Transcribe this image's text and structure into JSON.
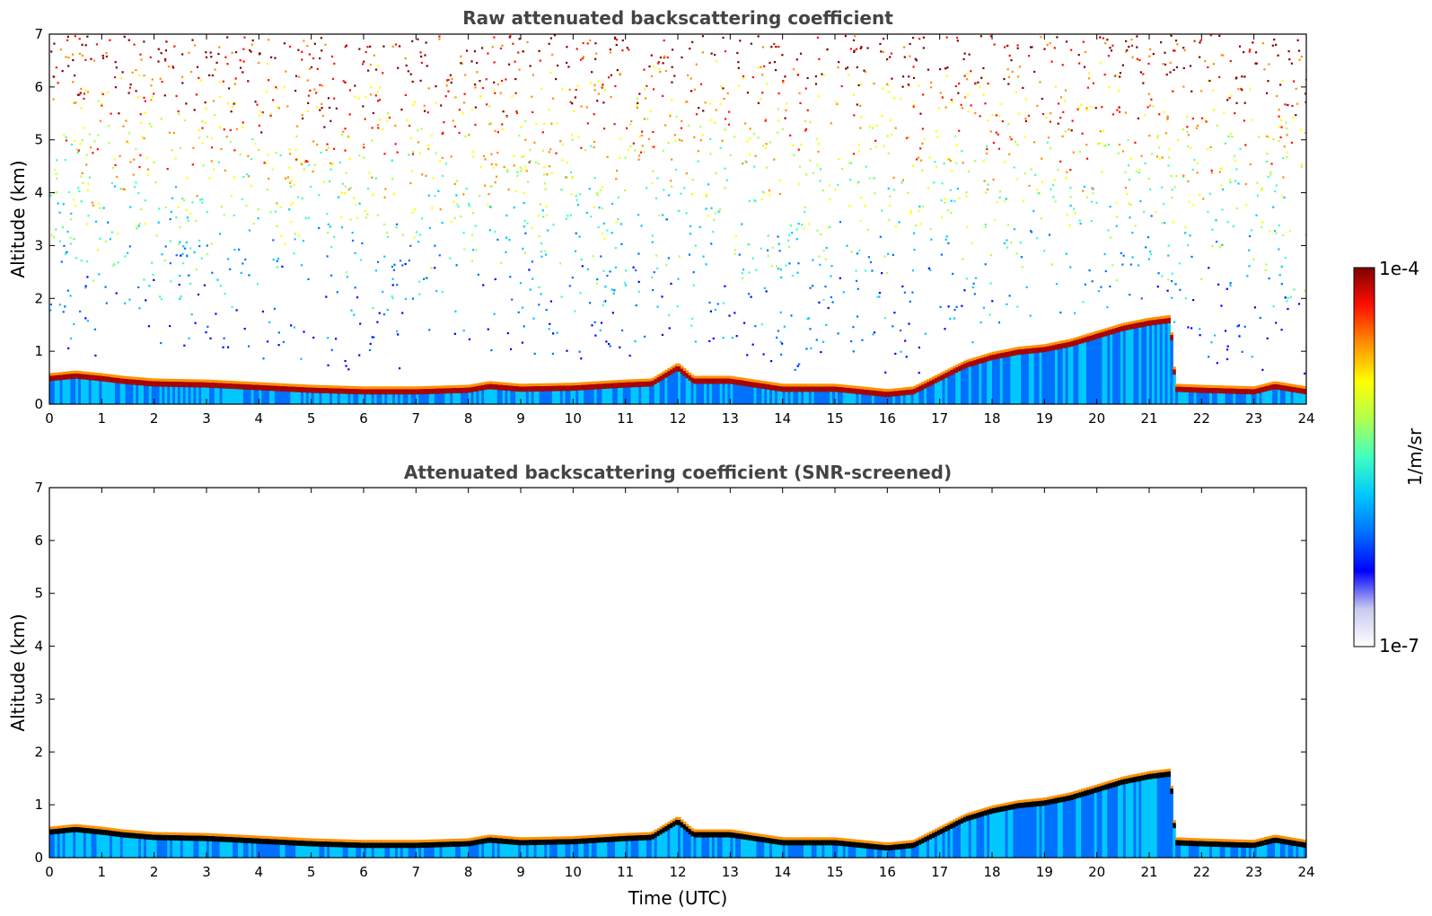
{
  "chart_data": [
    {
      "type": "heatmap",
      "title": "Raw attenuated backscattering coefficient",
      "xlabel": "",
      "ylabel": "Altitude (km)",
      "xlim": [
        0,
        24
      ],
      "ylim": [
        0,
        7
      ],
      "xticks": [
        "0",
        "1",
        "2",
        "3",
        "4",
        "5",
        "6",
        "7",
        "8",
        "9",
        "10",
        "11",
        "12",
        "13",
        "14",
        "15",
        "16",
        "17",
        "18",
        "19",
        "20",
        "21",
        "22",
        "23",
        "24"
      ],
      "yticks": [
        "0",
        "1",
        "2",
        "3",
        "4",
        "5",
        "6",
        "7"
      ],
      "boundary_layer_top_km": [
        [
          0,
          0.5
        ],
        [
          0.5,
          0.55
        ],
        [
          1,
          0.5
        ],
        [
          1.4,
          0.45
        ],
        [
          2,
          0.4
        ],
        [
          3,
          0.38
        ],
        [
          4,
          0.33
        ],
        [
          5,
          0.28
        ],
        [
          6,
          0.25
        ],
        [
          7,
          0.25
        ],
        [
          8,
          0.28
        ],
        [
          8.4,
          0.35
        ],
        [
          9,
          0.3
        ],
        [
          10,
          0.32
        ],
        [
          11,
          0.38
        ],
        [
          11.5,
          0.4
        ],
        [
          12,
          0.7
        ],
        [
          12.3,
          0.45
        ],
        [
          13,
          0.45
        ],
        [
          14,
          0.3
        ],
        [
          15,
          0.3
        ],
        [
          16,
          0.2
        ],
        [
          16.5,
          0.25
        ],
        [
          17,
          0.5
        ],
        [
          17.5,
          0.75
        ],
        [
          18,
          0.9
        ],
        [
          18.5,
          1.0
        ],
        [
          19,
          1.05
        ],
        [
          19.5,
          1.15
        ],
        [
          20,
          1.3
        ],
        [
          20.5,
          1.45
        ],
        [
          21,
          1.55
        ],
        [
          21.4,
          1.6
        ],
        [
          21.5,
          0.3
        ],
        [
          22,
          0.28
        ],
        [
          23,
          0.25
        ],
        [
          23.4,
          0.35
        ],
        [
          24,
          0.25
        ]
      ],
      "noise": "high",
      "grid": false
    },
    {
      "type": "heatmap",
      "title": "Attenuated backscattering coefficient (SNR-screened)",
      "xlabel": "Time (UTC)",
      "ylabel": "Altitude (km)",
      "xlim": [
        0,
        24
      ],
      "ylim": [
        0,
        7
      ],
      "xticks": [
        "0",
        "1",
        "2",
        "3",
        "4",
        "5",
        "6",
        "7",
        "8",
        "9",
        "10",
        "11",
        "12",
        "13",
        "14",
        "15",
        "16",
        "17",
        "18",
        "19",
        "20",
        "21",
        "22",
        "23",
        "24"
      ],
      "yticks": [
        "0",
        "1",
        "2",
        "3",
        "4",
        "5",
        "6",
        "7"
      ],
      "boundary_layer_top_km": [
        [
          0,
          0.5
        ],
        [
          0.5,
          0.55
        ],
        [
          1,
          0.5
        ],
        [
          1.4,
          0.45
        ],
        [
          2,
          0.4
        ],
        [
          3,
          0.38
        ],
        [
          4,
          0.33
        ],
        [
          5,
          0.28
        ],
        [
          6,
          0.25
        ],
        [
          7,
          0.25
        ],
        [
          8,
          0.28
        ],
        [
          8.4,
          0.35
        ],
        [
          9,
          0.3
        ],
        [
          10,
          0.32
        ],
        [
          11,
          0.38
        ],
        [
          11.5,
          0.4
        ],
        [
          12,
          0.7
        ],
        [
          12.3,
          0.45
        ],
        [
          13,
          0.45
        ],
        [
          14,
          0.3
        ],
        [
          15,
          0.3
        ],
        [
          16,
          0.2
        ],
        [
          16.5,
          0.25
        ],
        [
          17,
          0.5
        ],
        [
          17.5,
          0.75
        ],
        [
          18,
          0.9
        ],
        [
          18.5,
          1.0
        ],
        [
          19,
          1.05
        ],
        [
          19.5,
          1.15
        ],
        [
          20,
          1.3
        ],
        [
          20.5,
          1.45
        ],
        [
          21,
          1.55
        ],
        [
          21.4,
          1.6
        ],
        [
          21.5,
          0.3
        ],
        [
          22,
          0.28
        ],
        [
          23,
          0.25
        ],
        [
          23.4,
          0.35
        ],
        [
          24,
          0.25
        ]
      ],
      "noise": "none",
      "grid": false
    }
  ],
  "colorbar": {
    "max_label": "1e-4",
    "min_label": "1e-7",
    "unit_label": "1/m/sr",
    "scale": "log",
    "range": [
      1e-07,
      0.0001
    ],
    "colormap": [
      "#ffffff",
      "#c8c8f0",
      "#0000ff",
      "#0070ff",
      "#00c8ff",
      "#40ffc0",
      "#b0ff50",
      "#ffff00",
      "#ff9000",
      "#ff1000",
      "#800000"
    ]
  },
  "colors": {
    "title_text": "#444444",
    "axis": "#000000",
    "background": "#ffffff",
    "boundary_core_raw": "#aa0000",
    "boundary_core_screened": "#000000"
  }
}
